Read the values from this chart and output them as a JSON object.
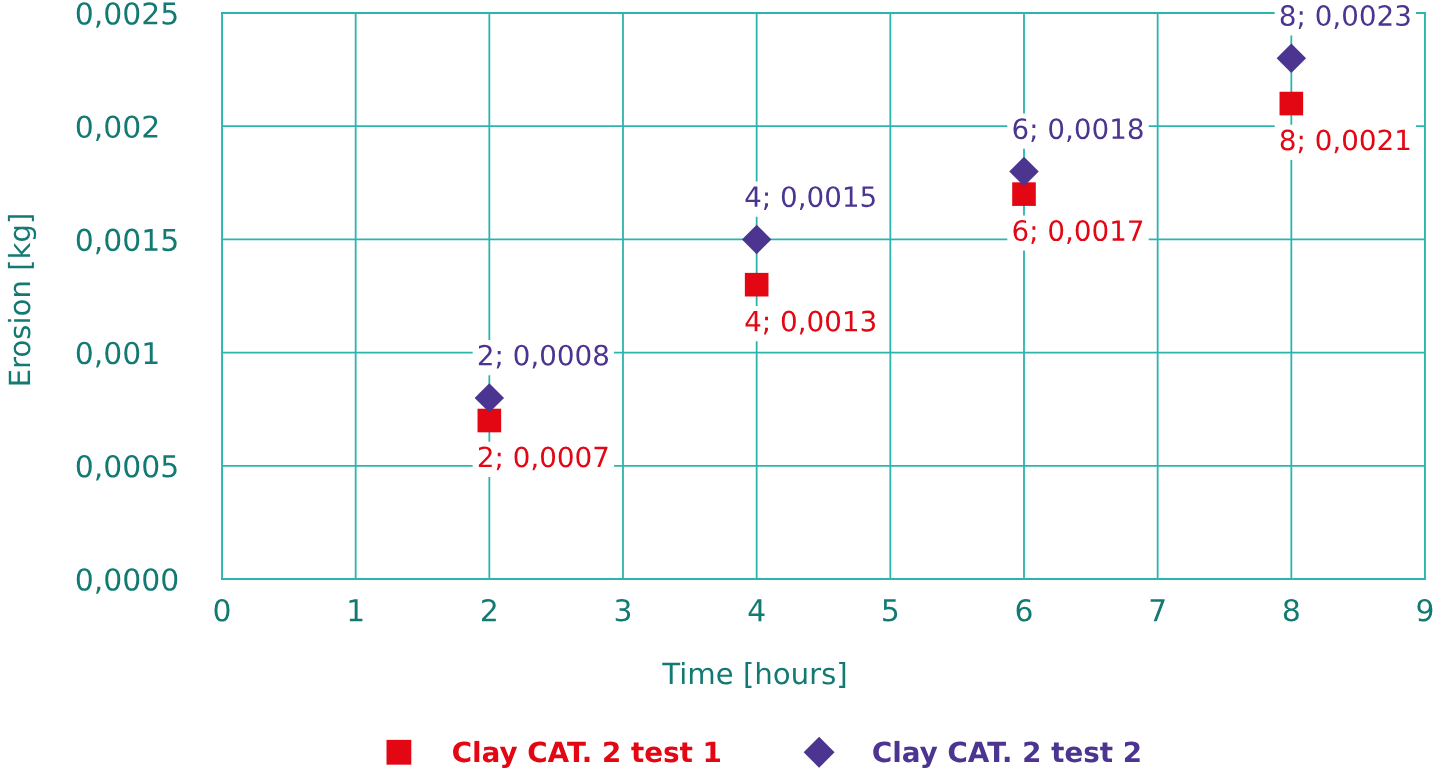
{
  "chart_data": {
    "type": "scatter",
    "xlabel": "Time [hours]",
    "ylabel": "Erosion [kg]",
    "x": [
      2,
      4,
      6,
      8
    ],
    "series": [
      {
        "name": "Clay CAT. 2 test 1",
        "color": "#e30613",
        "marker": "square",
        "values": [
          0.0007,
          0.0013,
          0.0017,
          0.0021
        ],
        "value_labels": [
          "2; 0,0007",
          "4; 0,0013",
          "6; 0,0017",
          "8; 0,0021"
        ]
      },
      {
        "name": "Clay CAT. 2 test 2",
        "color": "#4b3590",
        "marker": "diamond",
        "values": [
          0.0008,
          0.0015,
          0.0018,
          0.0023
        ],
        "value_labels": [
          "2; 0,0008",
          "4; 0,0015",
          "6; 0,0018",
          "8; 0,0023"
        ]
      }
    ],
    "xlim": [
      0,
      9
    ],
    "xticks": [
      0,
      1,
      2,
      3,
      4,
      5,
      6,
      7,
      8,
      9
    ],
    "ylim": [
      0,
      0.0025
    ],
    "yticks": [
      {
        "value": 0,
        "label": "0,0000"
      },
      {
        "value": 0.0005,
        "label": "0,0005"
      },
      {
        "value": 0.001,
        "label": "0,001"
      },
      {
        "value": 0.0015,
        "label": "0,0015"
      },
      {
        "value": 0.002,
        "label": "0,002"
      },
      {
        "value": 0.0025,
        "label": "0,0025"
      }
    ],
    "grid": true,
    "legend": "bottom"
  }
}
